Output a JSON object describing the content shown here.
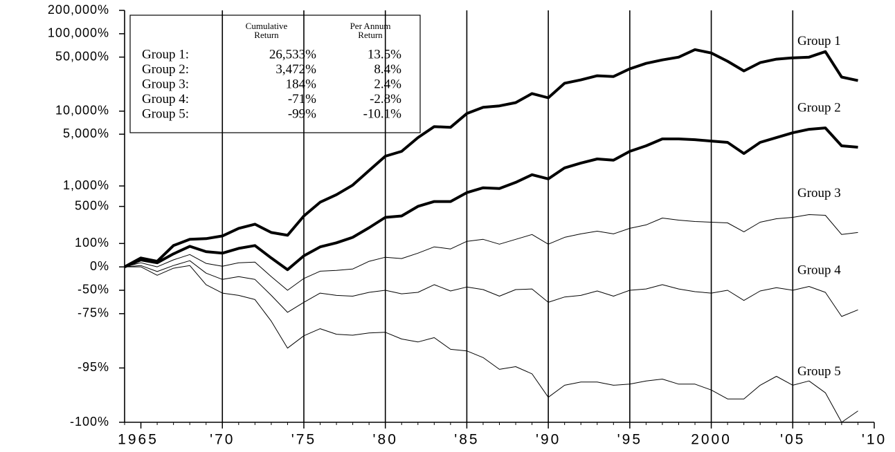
{
  "chart_data": {
    "type": "line",
    "log_scale": true,
    "x": [
      1964,
      1965,
      1966,
      1967,
      1968,
      1969,
      1970,
      1971,
      1972,
      1973,
      1974,
      1975,
      1976,
      1977,
      1978,
      1979,
      1980,
      1981,
      1982,
      1983,
      1984,
      1985,
      1986,
      1987,
      1988,
      1989,
      1990,
      1991,
      1992,
      1993,
      1994,
      1995,
      1996,
      1997,
      1998,
      1999,
      2000,
      2001,
      2002,
      2003,
      2004,
      2005,
      2006,
      2007,
      2008,
      2009
    ],
    "xlim": [
      1964,
      2010
    ],
    "xticks": [
      {
        "value": 1965,
        "label": "1965"
      },
      {
        "value": 1970,
        "label": "'70"
      },
      {
        "value": 1975,
        "label": "'75"
      },
      {
        "value": 1980,
        "label": "'80"
      },
      {
        "value": 1985,
        "label": "'85"
      },
      {
        "value": 1990,
        "label": "'90"
      },
      {
        "value": 1995,
        "label": "'95"
      },
      {
        "value": 2000,
        "label": "2000"
      },
      {
        "value": 2005,
        "label": "'05"
      },
      {
        "value": 2010,
        "label": "'10"
      }
    ],
    "ylim": [
      -99,
      200000
    ],
    "yticks": [
      {
        "value": 200000,
        "label": "200,000%"
      },
      {
        "value": 100000,
        "label": "100,000%"
      },
      {
        "value": 50000,
        "label": "50,000%"
      },
      {
        "value": 10000,
        "label": "10,000%"
      },
      {
        "value": 5000,
        "label": "5,000%"
      },
      {
        "value": 1000,
        "label": "1,000%"
      },
      {
        "value": 500,
        "label": "500%"
      },
      {
        "value": 100,
        "label": "100%"
      },
      {
        "value": 0,
        "label": "0%"
      },
      {
        "value": -50,
        "label": "-50%"
      },
      {
        "value": -75,
        "label": "-75%"
      },
      {
        "value": -95,
        "label": "-95%"
      },
      {
        "value": -99,
        "label": "-100%"
      }
    ],
    "grid": "x",
    "series": [
      {
        "name": "Group 1",
        "color": "#000000",
        "width": 4,
        "values": [
          0,
          30,
          18,
          88,
          126,
          131,
          150,
          213,
          254,
          177,
          155,
          352,
          579,
          749,
          1030,
          1635,
          2560,
          2970,
          4510,
          6280,
          6150,
          9300,
          11200,
          11700,
          12900,
          16900,
          14900,
          23000,
          25400,
          28700,
          28100,
          35300,
          41500,
          46000,
          49900,
          62400,
          56400,
          44200,
          33200,
          42400,
          47000,
          48900,
          49900,
          58800,
          27600,
          24900
        ]
      },
      {
        "name": "Group 2",
        "color": "#000000",
        "width": 4,
        "values": [
          0,
          23,
          13,
          47,
          84,
          57,
          50,
          73,
          88,
          30,
          -8,
          39,
          81,
          104,
          140,
          219,
          334,
          352,
          501,
          593,
          593,
          803,
          943,
          921,
          1124,
          1435,
          1258,
          1780,
          2070,
          2350,
          2260,
          2970,
          3510,
          4330,
          4330,
          4240,
          4060,
          3900,
          2780,
          3900,
          4510,
          5220,
          5790,
          6040,
          3510,
          3370
        ]
      },
      {
        "name": "Group 3",
        "color": "#000000",
        "width": 1,
        "values": [
          0,
          13,
          0,
          23,
          44,
          11,
          2,
          13,
          15,
          -25,
          -50,
          -29,
          -12,
          -10,
          -6,
          18,
          33,
          28,
          50,
          81,
          70,
          113,
          126,
          96,
          126,
          161,
          96,
          140,
          166,
          188,
          166,
          213,
          247,
          325,
          300,
          284,
          276,
          268,
          183,
          276,
          316,
          334,
          371,
          361,
          161,
          177
        ]
      },
      {
        "name": "Group 4",
        "color": "#000000",
        "width": 1,
        "values": [
          0,
          4,
          -13,
          4,
          20,
          -17,
          -31,
          -25,
          -31,
          -57,
          -74,
          -65,
          -54,
          -57,
          -58,
          -53,
          -50,
          -55,
          -53,
          -41,
          -51,
          -45,
          -49,
          -58,
          -49,
          -48,
          -65,
          -59,
          -57,
          -51,
          -58,
          -50,
          -48,
          -41,
          -48,
          -52,
          -54,
          -50,
          -63,
          -51,
          -46,
          -50,
          -44,
          -53,
          -77,
          -72
        ]
      },
      {
        "name": "Group 5",
        "color": "#000000",
        "width": 1,
        "values": [
          0,
          0,
          -22,
          -4,
          4,
          -41,
          -54,
          -57,
          -62,
          -80,
          -91,
          -87,
          -84,
          -86.4,
          -86.8,
          -85.9,
          -85.6,
          -88.2,
          -89.2,
          -87.7,
          -91.3,
          -91.7,
          -93.2,
          -95.2,
          -94.8,
          -95.8,
          -97.9,
          -97.0,
          -96.7,
          -96.7,
          -97.0,
          -96.9,
          -96.6,
          -96.4,
          -96.9,
          -96.9,
          -97.4,
          -98.0,
          -98.0,
          -97.0,
          -96.1,
          -97.0,
          -96.6,
          -97.6,
          -99.0,
          -98.6
        ]
      }
    ],
    "table": {
      "columns": [
        [
          "Cumulative",
          "Return"
        ],
        [
          "Per Annum",
          "Return"
        ]
      ],
      "rows": [
        [
          "Group 1:",
          "26,533%",
          "13.5%"
        ],
        [
          "Group 2:",
          "3,472%",
          "8.4%"
        ],
        [
          "Group 3:",
          "184%",
          "2.4%"
        ],
        [
          "Group 4:",
          "-71%",
          "-2.8%"
        ],
        [
          "Group 5:",
          "-99%",
          "-10.1%"
        ]
      ]
    }
  }
}
